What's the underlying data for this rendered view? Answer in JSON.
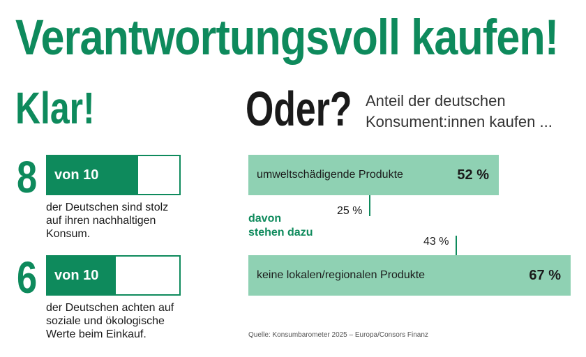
{
  "title": "Verantwortungsvoll kaufen!",
  "left": {
    "heading": "Klar!",
    "stats": [
      {
        "number": "8",
        "bar_label": "von 10",
        "fraction": 0.8,
        "text": [
          "der Deutschen sind stolz",
          "auf ihren nachhaltigen",
          "Konsum."
        ]
      },
      {
        "number": "6",
        "bar_label": "von 10",
        "fraction": 0.6,
        "text": [
          "der Deutschen achten auf",
          "soziale und ökologische",
          "Werte beim Einkauf."
        ]
      }
    ]
  },
  "right": {
    "heading": "Oder?",
    "intro": [
      "Anteil der deutschen",
      "Konsument:innen kaufen ..."
    ],
    "davon": [
      "davon",
      "stehen dazu"
    ],
    "source": "Quelle: Konsumbarometer 2025 – Europa/Consors Finanz"
  },
  "chart_data": {
    "type": "bar",
    "categories": [
      "umweltschädigende Produkte",
      "keine lokalen/regionalen Produkte"
    ],
    "series": [
      {
        "values": [
          52,
          67
        ],
        "labels": [
          "52 %",
          "67 %"
        ]
      },
      {
        "name": "davon stehen dazu",
        "values": [
          25,
          43
        ],
        "labels": [
          "25 %",
          "43 %"
        ]
      }
    ],
    "unit": "%"
  },
  "colors": {
    "green": "#0e8a5c",
    "light_green": "#8fd1b3"
  }
}
